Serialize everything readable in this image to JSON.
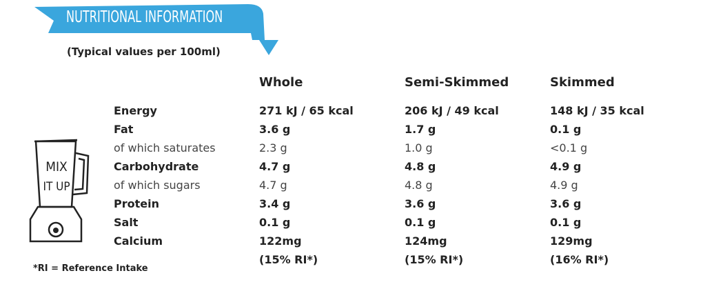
{
  "header": {
    "title": "NUTRITIONAL INFORMATION",
    "subtitle": "(Typical values per 100ml)"
  },
  "icon": {
    "lines": [
      "MIX",
      "IT UP"
    ]
  },
  "table": {
    "columns": [
      "Whole",
      "Semi-Skimmed",
      "Skimmed"
    ],
    "rows": [
      {
        "label": "Energy",
        "style": "bold",
        "values": [
          "271 kJ / 65 kcal",
          "206 kJ / 49 kcal",
          "148 kJ / 35 kcal"
        ]
      },
      {
        "label": "Fat",
        "style": "bold",
        "values": [
          "3.6 g",
          "1.7 g",
          "0.1 g"
        ]
      },
      {
        "label": "of which saturates",
        "style": "light",
        "values": [
          "2.3 g",
          "1.0 g",
          "<0.1 g"
        ]
      },
      {
        "label": "Carbohydrate",
        "style": "bold",
        "values": [
          "4.7 g",
          "4.8 g",
          "4.9 g"
        ]
      },
      {
        "label": "of which sugars",
        "style": "light",
        "values": [
          "4.7 g",
          "4.8 g",
          "4.9 g"
        ]
      },
      {
        "label": "Protein",
        "style": "bold",
        "values": [
          "3.4 g",
          "3.6 g",
          "3.6 g"
        ]
      },
      {
        "label": "Salt",
        "style": "bold",
        "values": [
          "0.1 g",
          "0.1 g",
          "0.1 g"
        ]
      },
      {
        "label": "Calcium",
        "style": "bold",
        "values": [
          "122mg",
          "124mg",
          "129mg"
        ],
        "notes": [
          "(15% RI*)",
          "(15% RI*)",
          "(16% RI*)"
        ]
      }
    ]
  },
  "footnote": "*RI = Reference Intake"
}
